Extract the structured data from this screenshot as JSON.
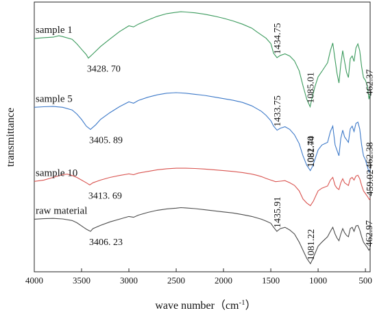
{
  "chart_data": {
    "type": "line",
    "title": "",
    "xlabel": "wave number（cm",
    "xlabel_sup": "-1",
    "xlabel_close": "）",
    "ylabel": "transmittance",
    "xlim": [
      4000,
      450
    ],
    "x_reversed": true,
    "y_axis_values": false,
    "grid": false,
    "legend": "none",
    "x_ticks": [
      4000,
      3500,
      3000,
      2500,
      2000,
      1500,
      1000,
      500
    ],
    "series": [
      {
        "name": "sample 1",
        "color": "#3a9a5c",
        "points": [
          [
            4000,
            0.865
          ],
          [
            3900,
            0.868
          ],
          [
            3800,
            0.87
          ],
          [
            3740,
            0.875
          ],
          [
            3700,
            0.872
          ],
          [
            3600,
            0.862
          ],
          [
            3550,
            0.845
          ],
          [
            3500,
            0.825
          ],
          [
            3450,
            0.805
          ],
          [
            3428.7,
            0.792
          ],
          [
            3380,
            0.808
          ],
          [
            3300,
            0.835
          ],
          [
            3200,
            0.863
          ],
          [
            3100,
            0.89
          ],
          [
            3000,
            0.912
          ],
          [
            2950,
            0.908
          ],
          [
            2900,
            0.918
          ],
          [
            2800,
            0.933
          ],
          [
            2700,
            0.947
          ],
          [
            2600,
            0.957
          ],
          [
            2500,
            0.962
          ],
          [
            2450,
            0.964
          ],
          [
            2400,
            0.963
          ],
          [
            2300,
            0.96
          ],
          [
            2200,
            0.955
          ],
          [
            2100,
            0.948
          ],
          [
            2000,
            0.94
          ],
          [
            1900,
            0.93
          ],
          [
            1800,
            0.918
          ],
          [
            1700,
            0.903
          ],
          [
            1650,
            0.89
          ],
          [
            1600,
            0.878
          ],
          [
            1550,
            0.866
          ],
          [
            1500,
            0.846
          ],
          [
            1470,
            0.81
          ],
          [
            1434.75,
            0.794
          ],
          [
            1400,
            0.802
          ],
          [
            1350,
            0.808
          ],
          [
            1300,
            0.8
          ],
          [
            1250,
            0.782
          ],
          [
            1200,
            0.745
          ],
          [
            1160,
            0.69
          ],
          [
            1120,
            0.64
          ],
          [
            1085.01,
            0.612
          ],
          [
            1060,
            0.65
          ],
          [
            1030,
            0.69
          ],
          [
            1000,
            0.723
          ],
          [
            960,
            0.743
          ],
          [
            900,
            0.775
          ],
          [
            870,
            0.82
          ],
          [
            845,
            0.848
          ],
          [
            820,
            0.785
          ],
          [
            800,
            0.735
          ],
          [
            780,
            0.7
          ],
          [
            760,
            0.77
          ],
          [
            740,
            0.82
          ],
          [
            720,
            0.78
          ],
          [
            700,
            0.74
          ],
          [
            680,
            0.72
          ],
          [
            660,
            0.79
          ],
          [
            640,
            0.8
          ],
          [
            620,
            0.78
          ],
          [
            600,
            0.83
          ],
          [
            580,
            0.845
          ],
          [
            560,
            0.82
          ],
          [
            540,
            0.76
          ],
          [
            520,
            0.72
          ],
          [
            500,
            0.71
          ],
          [
            480,
            0.69
          ],
          [
            462.37,
            0.64
          ],
          [
            450,
            0.66
          ]
        ]
      },
      {
        "name": "sample 5",
        "color": "#3b78c8",
        "points": [
          [
            4000,
            0.61
          ],
          [
            3900,
            0.612
          ],
          [
            3800,
            0.613
          ],
          [
            3700,
            0.61
          ],
          [
            3600,
            0.6
          ],
          [
            3550,
            0.585
          ],
          [
            3500,
            0.565
          ],
          [
            3450,
            0.54
          ],
          [
            3405.89,
            0.528
          ],
          [
            3350,
            0.545
          ],
          [
            3300,
            0.565
          ],
          [
            3200,
            0.59
          ],
          [
            3100,
            0.612
          ],
          [
            3000,
            0.63
          ],
          [
            2950,
            0.625
          ],
          [
            2900,
            0.635
          ],
          [
            2800,
            0.647
          ],
          [
            2700,
            0.656
          ],
          [
            2600,
            0.662
          ],
          [
            2500,
            0.664
          ],
          [
            2400,
            0.662
          ],
          [
            2300,
            0.658
          ],
          [
            2200,
            0.654
          ],
          [
            2100,
            0.648
          ],
          [
            2000,
            0.642
          ],
          [
            1900,
            0.636
          ],
          [
            1800,
            0.628
          ],
          [
            1700,
            0.615
          ],
          [
            1650,
            0.605
          ],
          [
            1600,
            0.595
          ],
          [
            1550,
            0.58
          ],
          [
            1500,
            0.56
          ],
          [
            1470,
            0.54
          ],
          [
            1433.75,
            0.525
          ],
          [
            1400,
            0.532
          ],
          [
            1350,
            0.538
          ],
          [
            1300,
            0.528
          ],
          [
            1250,
            0.508
          ],
          [
            1200,
            0.475
          ],
          [
            1160,
            0.43
          ],
          [
            1120,
            0.395
          ],
          [
            1082.4,
            0.375
          ],
          [
            1060,
            0.39
          ],
          [
            1030,
            0.42
          ],
          [
            1000,
            0.452
          ],
          [
            960,
            0.47
          ],
          [
            900,
            0.48
          ],
          [
            870,
            0.52
          ],
          [
            845,
            0.54
          ],
          [
            820,
            0.47
          ],
          [
            800,
            0.45
          ],
          [
            780,
            0.43
          ],
          [
            760,
            0.495
          ],
          [
            740,
            0.525
          ],
          [
            720,
            0.5
          ],
          [
            700,
            0.49
          ],
          [
            680,
            0.48
          ],
          [
            660,
            0.53
          ],
          [
            640,
            0.54
          ],
          [
            620,
            0.52
          ],
          [
            600,
            0.55
          ],
          [
            580,
            0.555
          ],
          [
            560,
            0.53
          ],
          [
            540,
            0.47
          ],
          [
            520,
            0.43
          ],
          [
            500,
            0.415
          ],
          [
            480,
            0.39
          ],
          [
            462.38,
            0.37
          ],
          [
            450,
            0.38
          ]
        ]
      },
      {
        "name": "sample 10",
        "color": "#d9534f",
        "points": [
          [
            4000,
            0.335
          ],
          [
            3900,
            0.34
          ],
          [
            3800,
            0.35
          ],
          [
            3700,
            0.36
          ],
          [
            3650,
            0.362
          ],
          [
            3600,
            0.357
          ],
          [
            3550,
            0.35
          ],
          [
            3500,
            0.34
          ],
          [
            3450,
            0.33
          ],
          [
            3413.69,
            0.322
          ],
          [
            3380,
            0.33
          ],
          [
            3300,
            0.34
          ],
          [
            3200,
            0.35
          ],
          [
            3100,
            0.357
          ],
          [
            3000,
            0.363
          ],
          [
            2950,
            0.36
          ],
          [
            2900,
            0.366
          ],
          [
            2800,
            0.372
          ],
          [
            2700,
            0.378
          ],
          [
            2600,
            0.382
          ],
          [
            2500,
            0.384
          ],
          [
            2400,
            0.384
          ],
          [
            2300,
            0.383
          ],
          [
            2200,
            0.381
          ],
          [
            2100,
            0.378
          ],
          [
            2000,
            0.375
          ],
          [
            1900,
            0.372
          ],
          [
            1800,
            0.368
          ],
          [
            1700,
            0.362
          ],
          [
            1650,
            0.358
          ],
          [
            1600,
            0.353
          ],
          [
            1550,
            0.346
          ],
          [
            1500,
            0.34
          ],
          [
            1450,
            0.334
          ],
          [
            1400,
            0.336
          ],
          [
            1350,
            0.338
          ],
          [
            1300,
            0.33
          ],
          [
            1250,
            0.32
          ],
          [
            1200,
            0.3
          ],
          [
            1160,
            0.27
          ],
          [
            1120,
            0.255
          ],
          [
            1081.74,
            0.245
          ],
          [
            1050,
            0.262
          ],
          [
            1020,
            0.285
          ],
          [
            1000,
            0.3
          ],
          [
            960,
            0.31
          ],
          [
            900,
            0.318
          ],
          [
            870,
            0.34
          ],
          [
            845,
            0.35
          ],
          [
            820,
            0.32
          ],
          [
            800,
            0.31
          ],
          [
            780,
            0.305
          ],
          [
            760,
            0.33
          ],
          [
            740,
            0.345
          ],
          [
            720,
            0.33
          ],
          [
            700,
            0.325
          ],
          [
            680,
            0.32
          ],
          [
            660,
            0.345
          ],
          [
            640,
            0.35
          ],
          [
            620,
            0.34
          ],
          [
            600,
            0.355
          ],
          [
            580,
            0.358
          ],
          [
            560,
            0.345
          ],
          [
            540,
            0.32
          ],
          [
            520,
            0.3
          ],
          [
            500,
            0.29
          ],
          [
            480,
            0.28
          ],
          [
            459.02,
            0.268
          ],
          [
            450,
            0.272
          ]
        ]
      },
      {
        "name": "raw material",
        "color": "#4a4a4a",
        "points": [
          [
            4000,
            0.195
          ],
          [
            3900,
            0.197
          ],
          [
            3800,
            0.198
          ],
          [
            3700,
            0.196
          ],
          [
            3600,
            0.19
          ],
          [
            3550,
            0.182
          ],
          [
            3500,
            0.17
          ],
          [
            3450,
            0.158
          ],
          [
            3406.23,
            0.15
          ],
          [
            3380,
            0.16
          ],
          [
            3300,
            0.172
          ],
          [
            3200,
            0.185
          ],
          [
            3100,
            0.195
          ],
          [
            3000,
            0.205
          ],
          [
            2950,
            0.202
          ],
          [
            2900,
            0.21
          ],
          [
            2800,
            0.22
          ],
          [
            2700,
            0.228
          ],
          [
            2600,
            0.233
          ],
          [
            2500,
            0.236
          ],
          [
            2450,
            0.238
          ],
          [
            2400,
            0.237
          ],
          [
            2300,
            0.234
          ],
          [
            2200,
            0.23
          ],
          [
            2100,
            0.226
          ],
          [
            2000,
            0.222
          ],
          [
            1900,
            0.218
          ],
          [
            1800,
            0.212
          ],
          [
            1700,
            0.205
          ],
          [
            1650,
            0.2
          ],
          [
            1600,
            0.195
          ],
          [
            1550,
            0.188
          ],
          [
            1500,
            0.18
          ],
          [
            1470,
            0.165
          ],
          [
            1435.91,
            0.15
          ],
          [
            1400,
            0.16
          ],
          [
            1350,
            0.165
          ],
          [
            1300,
            0.155
          ],
          [
            1250,
            0.14
          ],
          [
            1200,
            0.11
          ],
          [
            1160,
            0.08
          ],
          [
            1120,
            0.05
          ],
          [
            1081.22,
            0.03
          ],
          [
            1060,
            0.045
          ],
          [
            1030,
            0.07
          ],
          [
            1000,
            0.095
          ],
          [
            960,
            0.11
          ],
          [
            900,
            0.13
          ],
          [
            870,
            0.15
          ],
          [
            845,
            0.165
          ],
          [
            820,
            0.14
          ],
          [
            800,
            0.125
          ],
          [
            780,
            0.115
          ],
          [
            760,
            0.14
          ],
          [
            740,
            0.16
          ],
          [
            720,
            0.145
          ],
          [
            700,
            0.135
          ],
          [
            680,
            0.13
          ],
          [
            660,
            0.16
          ],
          [
            640,
            0.165
          ],
          [
            620,
            0.15
          ],
          [
            600,
            0.17
          ],
          [
            580,
            0.172
          ],
          [
            560,
            0.155
          ],
          [
            540,
            0.13
          ],
          [
            520,
            0.11
          ],
          [
            500,
            0.1
          ],
          [
            480,
            0.09
          ],
          [
            462.97,
            0.08
          ],
          [
            450,
            0.088
          ]
        ]
      }
    ],
    "peak_labels": [
      {
        "text": "3428. 70",
        "x": 3428.7,
        "series": 0,
        "orient": "h"
      },
      {
        "text": "1434.75",
        "x": 1434.75,
        "series": 0,
        "orient": "v"
      },
      {
        "text": "1085.01",
        "x": 1085.01,
        "series": 0,
        "orient": "v"
      },
      {
        "text": "462.37",
        "x": 462.37,
        "series": 0,
        "orient": "v"
      },
      {
        "text": "3405. 89",
        "x": 3405.89,
        "series": 1,
        "orient": "h"
      },
      {
        "text": "1433.75",
        "x": 1433.75,
        "series": 1,
        "orient": "v"
      },
      {
        "text": "1081.74",
        "x": 1081.74,
        "series": 1,
        "orient": "v"
      },
      {
        "text": "1082.40",
        "x": 1082.4,
        "series": 1,
        "orient": "v"
      },
      {
        "text": "462.38",
        "x": 462.38,
        "series": 1,
        "orient": "v"
      },
      {
        "text": "459.02",
        "x": 459.02,
        "series": 2,
        "orient": "v"
      },
      {
        "text": "3413. 69",
        "x": 3413.69,
        "series": 2,
        "orient": "h"
      },
      {
        "text": "1435.91",
        "x": 1435.91,
        "series": 3,
        "orient": "v"
      },
      {
        "text": "1081.22",
        "x": 1081.22,
        "series": 3,
        "orient": "v"
      },
      {
        "text": "462.97",
        "x": 462.97,
        "series": 3,
        "orient": "v"
      },
      {
        "text": "3406. 23",
        "x": 3406.23,
        "series": 3,
        "orient": "h"
      }
    ]
  }
}
